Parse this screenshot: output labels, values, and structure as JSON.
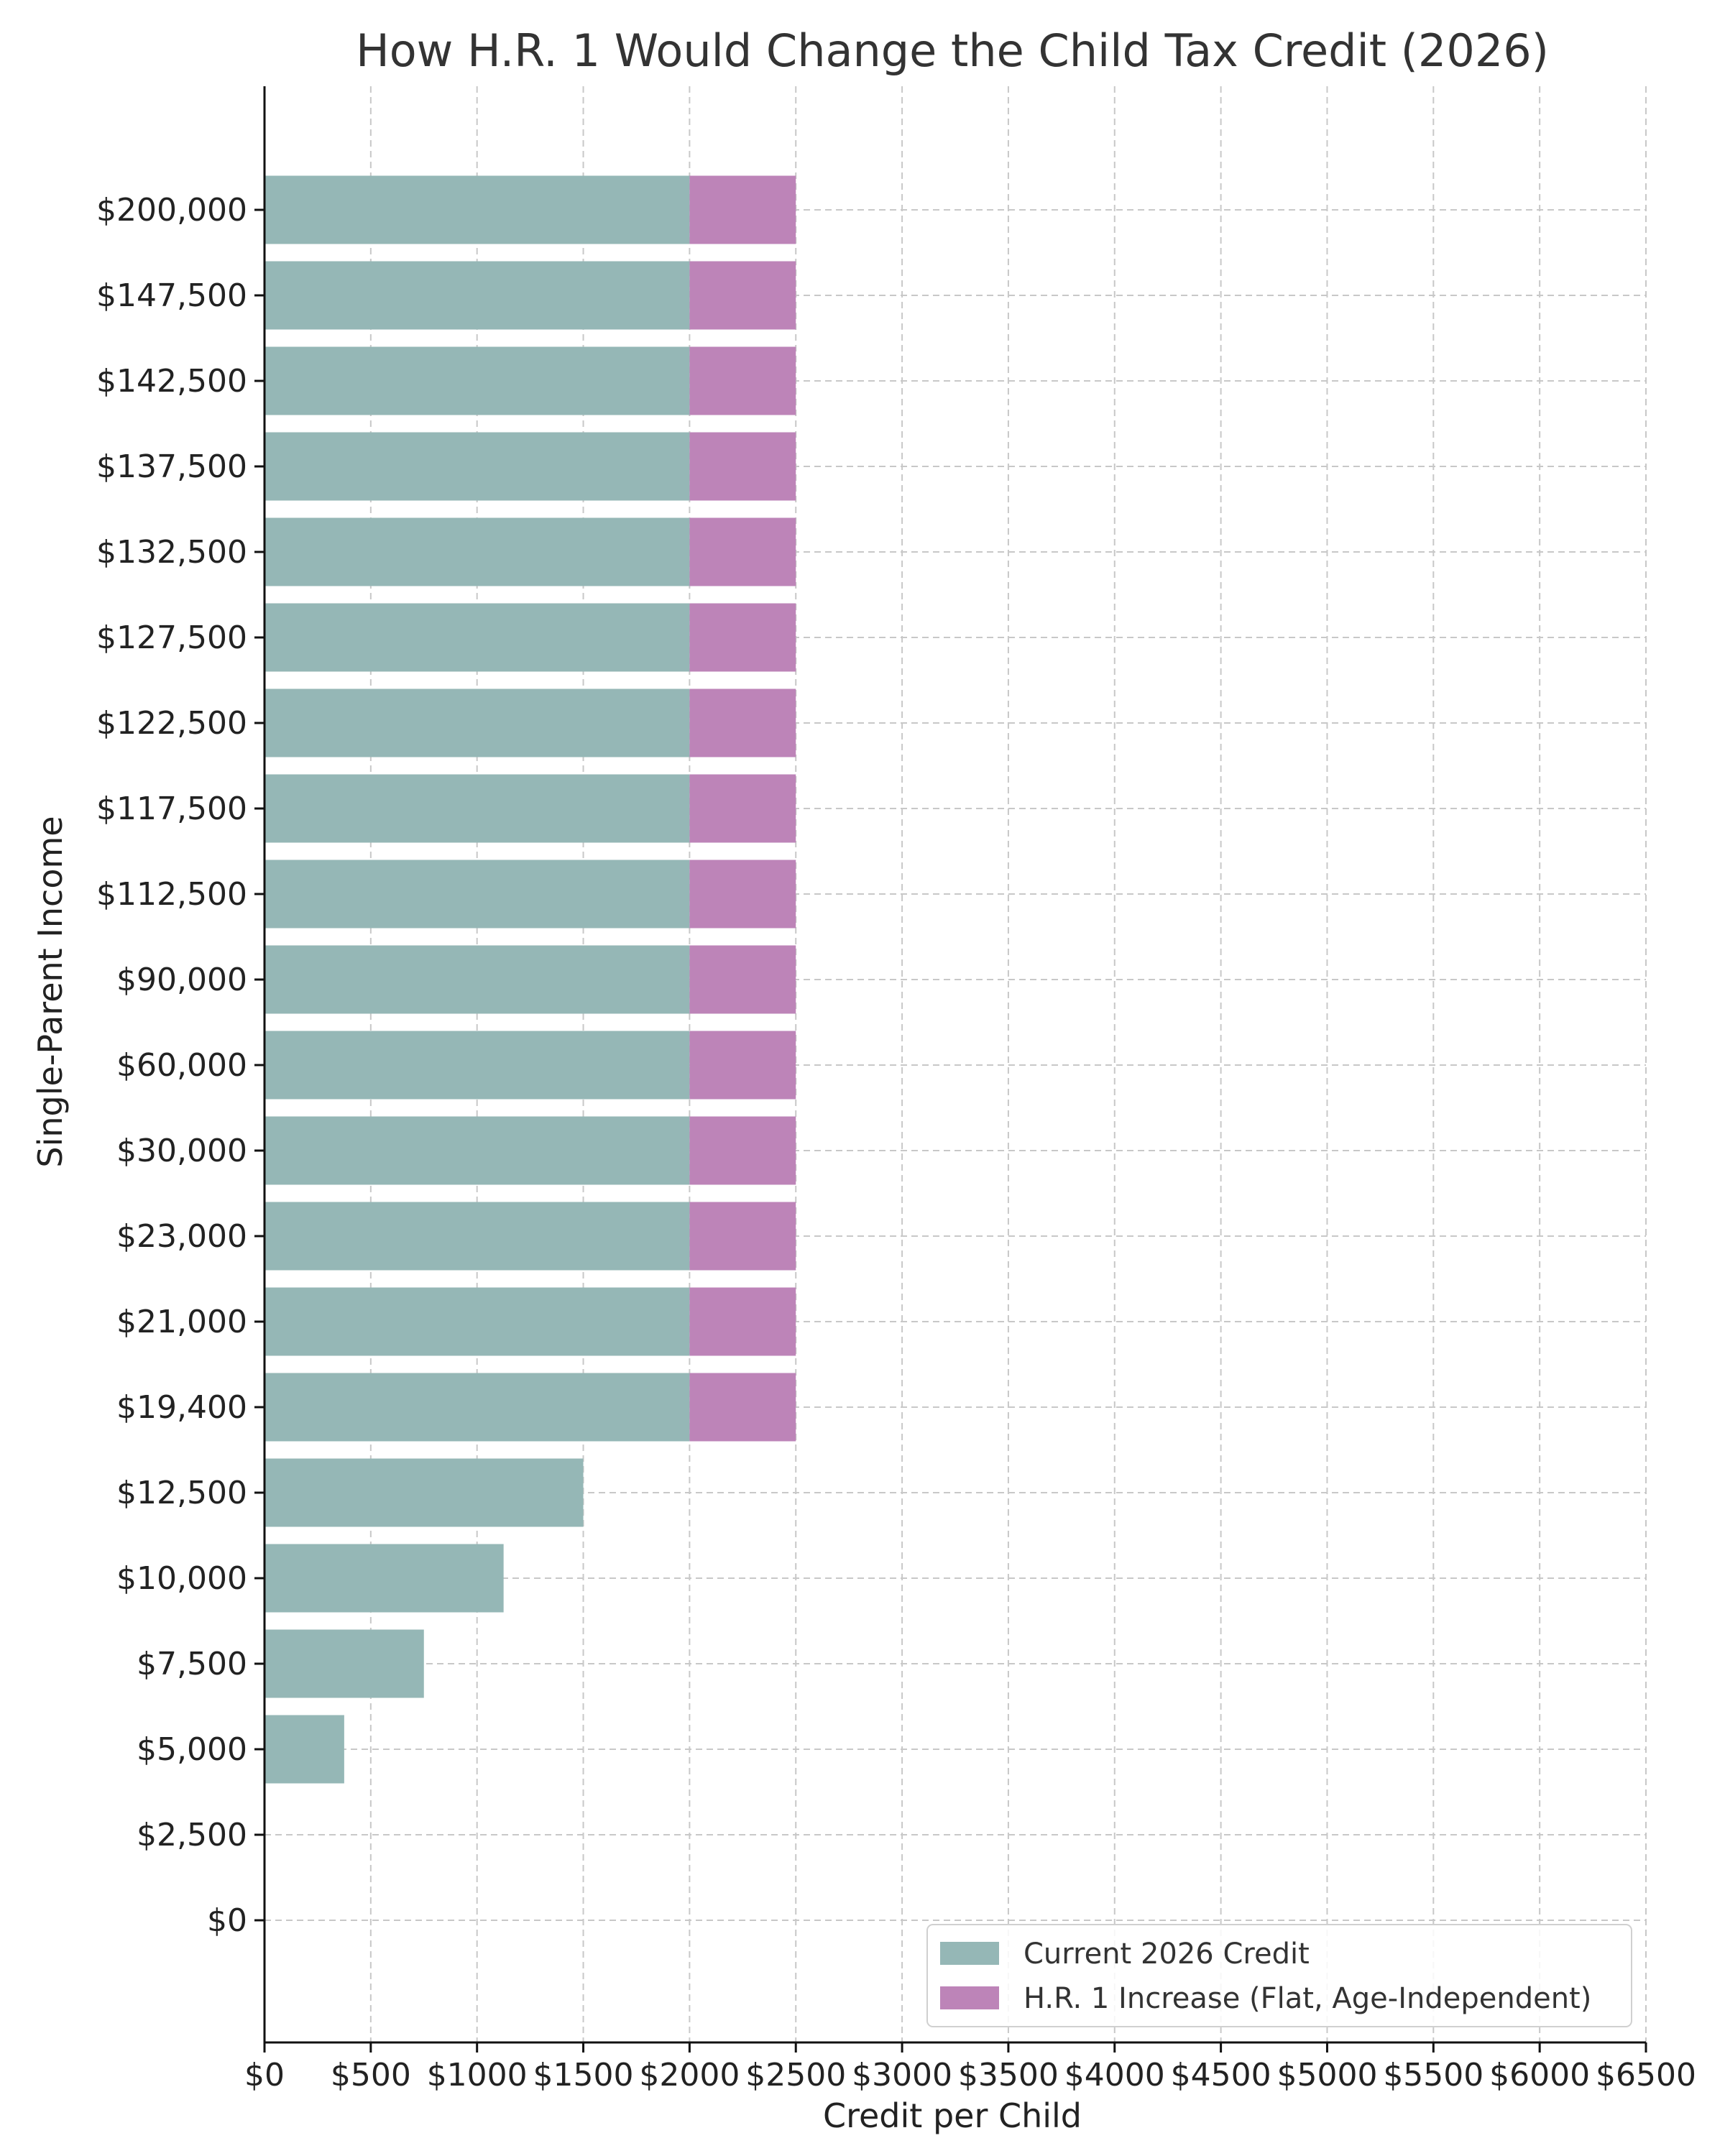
{
  "chart_data": {
    "type": "bar",
    "orientation": "horizontal",
    "stacked": true,
    "title": "How H.R. 1 Would Change the Child Tax Credit (2026)",
    "xlabel": "Credit per Child",
    "ylabel": "Single-Parent Income",
    "xlim": [
      0,
      6500
    ],
    "x_ticks": [
      "$0",
      "$500",
      "$1000",
      "$1500",
      "$2000",
      "$2500",
      "$3000",
      "$3500",
      "$4000",
      "$4500",
      "$5000",
      "$5500",
      "$6000",
      "$6500"
    ],
    "x_tick_values": [
      0,
      500,
      1000,
      1500,
      2000,
      2500,
      3000,
      3500,
      4000,
      4500,
      5000,
      5500,
      6000,
      6500
    ],
    "categories": [
      "$0",
      "$2,500",
      "$5,000",
      "$7,500",
      "$10,000",
      "$12,500",
      "$19,400",
      "$21,000",
      "$23,000",
      "$30,000",
      "$60,000",
      "$90,000",
      "$112,500",
      "$117,500",
      "$122,500",
      "$127,500",
      "$132,500",
      "$137,500",
      "$142,500",
      "$147,500",
      "$200,000"
    ],
    "series": [
      {
        "name": "Current 2026 Credit",
        "color": "#95b7b6",
        "values": [
          0,
          0,
          375,
          750,
          1125,
          1500,
          2000,
          2000,
          2000,
          2000,
          2000,
          2000,
          2000,
          2000,
          2000,
          2000,
          2000,
          2000,
          2000,
          2000,
          2000
        ]
      },
      {
        "name": "H.R. 1 Increase (Flat, Age-Independent)",
        "color": "#bd84b8",
        "values": [
          0,
          0,
          0,
          0,
          0,
          0,
          500,
          500,
          500,
          500,
          500,
          500,
          500,
          500,
          500,
          500,
          500,
          500,
          500,
          500,
          500
        ]
      }
    ],
    "grid": true,
    "legend_position": "lower-right"
  }
}
